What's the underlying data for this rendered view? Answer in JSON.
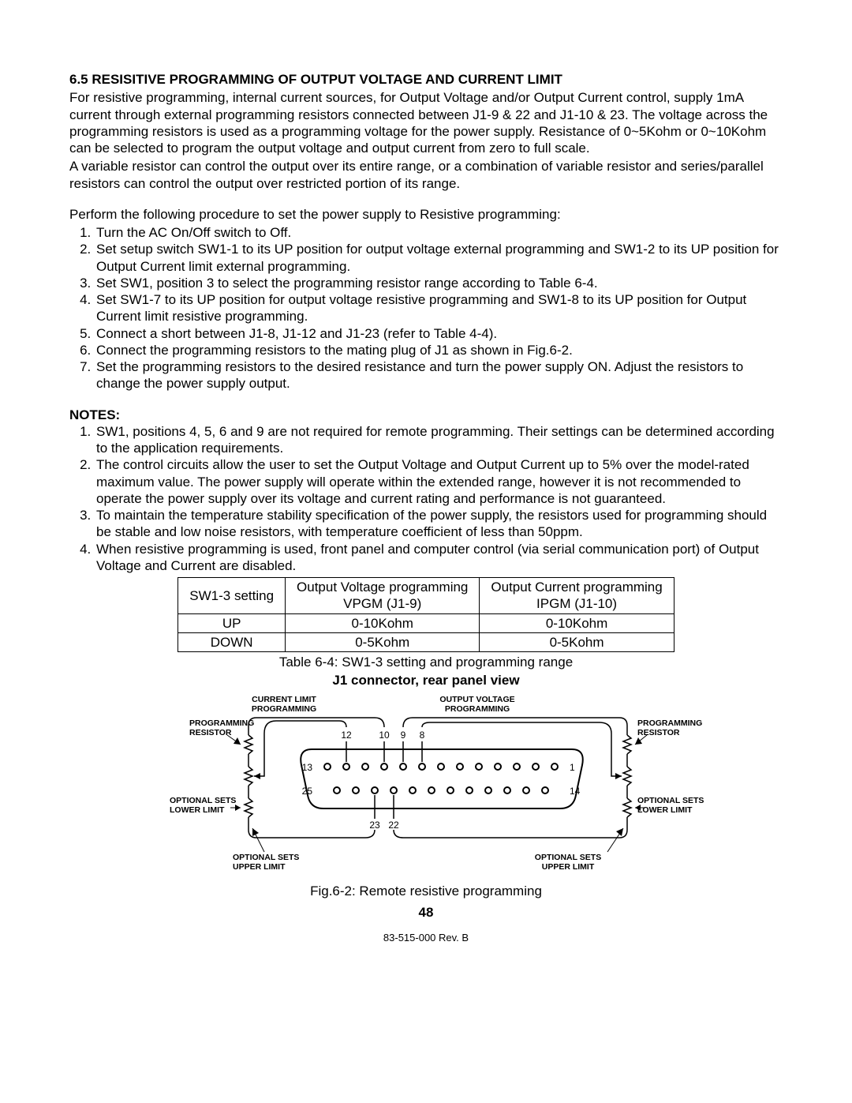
{
  "section_title": "6.5  RESISITIVE PROGRAMMING OF OUTPUT VOLTAGE AND CURRENT LIMIT",
  "intro_p1": "For resistive programming, internal current sources, for Output Voltage and/or Output Current control, supply 1mA current through external programming resistors connected between J1-9 & 22 and J1-10 & 23. The voltage across the programming resistors is used as a programming voltage for the power supply. Resistance of 0~5Kohm or 0~10Kohm can be selected to program the output voltage and output current from zero to full scale.",
  "intro_p2": "A variable resistor can control the output over its entire range, or a combination of variable resistor and series/parallel resistors can control the output over restricted portion of its range.",
  "procedure_lead": "Perform the following procedure to set the power supply to Resistive programming:",
  "steps": [
    "Turn the AC On/Off switch to Off.",
    "Set setup switch SW1-1 to its UP position for output voltage external programming and SW1-2 to its UP position for Output Current limit external programming.",
    "Set SW1, position 3 to select the programming resistor range according to Table 6-4.",
    "Set SW1-7 to its UP position for output voltage resistive programming and SW1-8 to its UP position for Output Current limit resistive programming.",
    "Connect a short between J1-8, J1-12 and J1-23  (refer to Table 4-4).",
    "Connect the programming resistors to the mating plug of J1 as shown in Fig.6-2.",
    "Set the programming resistors to the desired resistance and turn the power supply ON. Adjust the resistors to change the power supply output."
  ],
  "notes_heading": "NOTES:",
  "notes": [
    "SW1, positions 4, 5, 6 and 9 are not required for remote programming. Their settings can be determined according to the application requirements.",
    "The control circuits allow the user to set the Output Voltage and Output Current up to 5% over the model-rated maximum value. The power supply will operate within the extended range, however it is not recommended to operate the power supply over its voltage and current rating and performance is not guaranteed.",
    "To maintain the temperature stability specification of the power supply, the resistors used for programming should be stable and low noise resistors, with temperature coefficient of less than 50ppm.",
    "When resistive programming is used, front panel and computer control (via serial communication port) of Output Voltage and Current are disabled."
  ],
  "table": {
    "headers": [
      "SW1-3 setting",
      "Output Voltage programming VPGM (J1-9)",
      "Output Current programming IPGM (J1-10)"
    ],
    "rows": [
      [
        "UP",
        "0-10Kohm",
        "0-10Kohm"
      ],
      [
        "DOWN",
        "0-5Kohm",
        "0-5Kohm"
      ]
    ]
  },
  "table_caption": "Table 6-4: SW1-3 setting and programming range",
  "figure_title": "J1 connector, rear panel view",
  "figure_caption": "Fig.6-2: Remote resistive programming",
  "page_number": "48",
  "footer": "83-515-000 Rev. B",
  "diagram": {
    "labels": {
      "current_limit_prog": "CURRENT LIMIT PROGRAMMING",
      "output_voltage_prog": "OUTPUT VOLTAGE PROGRAMMING",
      "programming_resistor_l": "PROGRAMMING RESISTOR",
      "programming_resistor_r": "PROGRAMMING RESISTOR",
      "optional_lower_l": "OPTIONAL SETS LOWER LIMIT",
      "optional_lower_r": "OPTIONAL SETS LOWER LIMIT",
      "optional_upper_l": "OPTIONAL SETS UPPER LIMIT",
      "optional_upper_r": "OPTIONAL SETS UPPER LIMIT"
    },
    "pins": {
      "top_left": "13",
      "top_right": "1",
      "bottom_left": "25",
      "bottom_right": "14",
      "cb1": "12",
      "cb2": "10",
      "cb3": "9",
      "cb4": "8",
      "cb5": "23",
      "cb6": "22"
    }
  }
}
